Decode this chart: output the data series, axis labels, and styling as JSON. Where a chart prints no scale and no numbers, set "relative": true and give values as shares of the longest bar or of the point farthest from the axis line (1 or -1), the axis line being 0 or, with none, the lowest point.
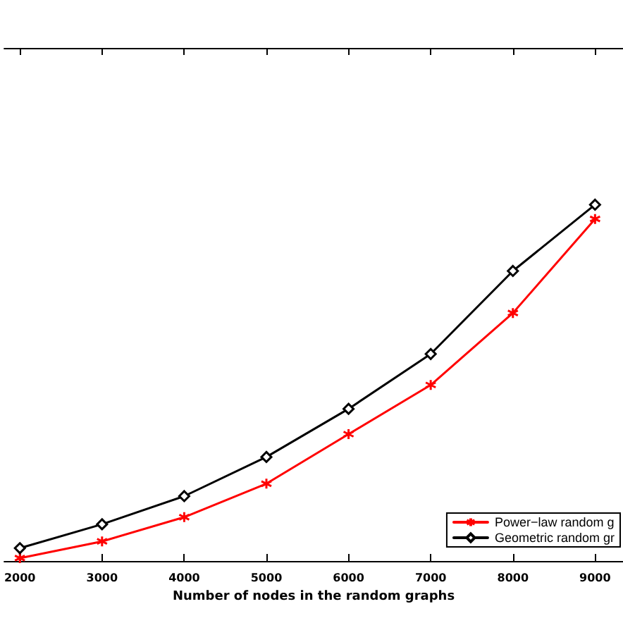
{
  "chart_data": {
    "type": "line",
    "relative": true,
    "xlabel": "Number of nodes in the random graphs",
    "x": [
      2000,
      3000,
      4000,
      5000,
      6000,
      7000,
      8000,
      9000
    ],
    "xlim": [
      1810,
      9340
    ],
    "xticks": [
      2000,
      3000,
      4000,
      5000,
      6000,
      7000,
      8000,
      9000
    ],
    "legend": "bottom right",
    "grid": false,
    "tick_labels": "x",
    "series": [
      {
        "name": "Power−law random g",
        "color": "#ff0000",
        "marker": "cross",
        "values": [
          0.008,
          0.055,
          0.123,
          0.217,
          0.356,
          0.494,
          0.696,
          0.96
        ]
      },
      {
        "name": "Geometric random gr",
        "color": "#000000",
        "marker": "diamond",
        "values": [
          0.036,
          0.103,
          0.182,
          0.292,
          0.427,
          0.581,
          0.814,
          1
        ]
      }
    ]
  }
}
